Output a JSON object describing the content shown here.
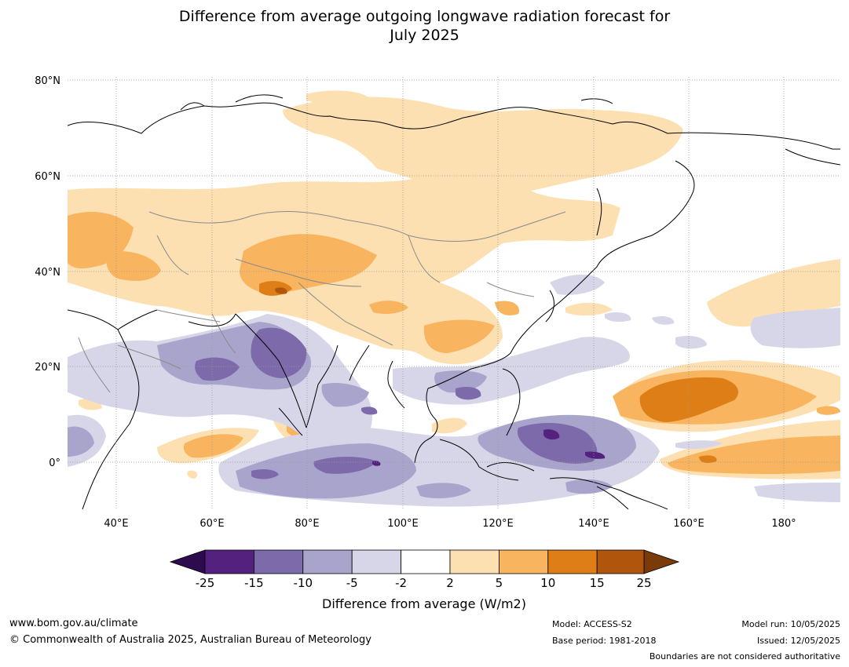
{
  "title_line1": "Difference from average outgoing longwave radiation forecast for",
  "title_line2": "July 2025",
  "axes": {
    "lat_labels": [
      "80°N",
      "60°N",
      "40°N",
      "20°N",
      "0°"
    ],
    "lon_labels": [
      "40°E",
      "60°E",
      "80°E",
      "100°E",
      "120°E",
      "140°E",
      "160°E",
      "180°"
    ]
  },
  "colorbar": {
    "title": "Difference from average (W/m2)",
    "ticks": [
      "-25",
      "-15",
      "-10",
      "-5",
      "-2",
      "2",
      "5",
      "10",
      "15",
      "25"
    ],
    "colors": [
      "#2d0b4e",
      "#55217f",
      "#7d6aab",
      "#a9a4cc",
      "#d7d6e9",
      "#ffffff",
      "#fde0b2",
      "#f9b45f",
      "#de7e17",
      "#b0560c",
      "#7a3a0a"
    ]
  },
  "footer": {
    "website": "www.bom.gov.au/climate",
    "copyright": "© Commonwealth of Australia 2025, Australian Bureau of Meteorology",
    "model": "Model: ACCESS-S2",
    "base_period": "Base period: 1981-2018",
    "model_run": "Model run: 10/05/2025",
    "issued": "Issued: 12/05/2025",
    "disclaimer": "Boundaries are not considered authoritative"
  }
}
